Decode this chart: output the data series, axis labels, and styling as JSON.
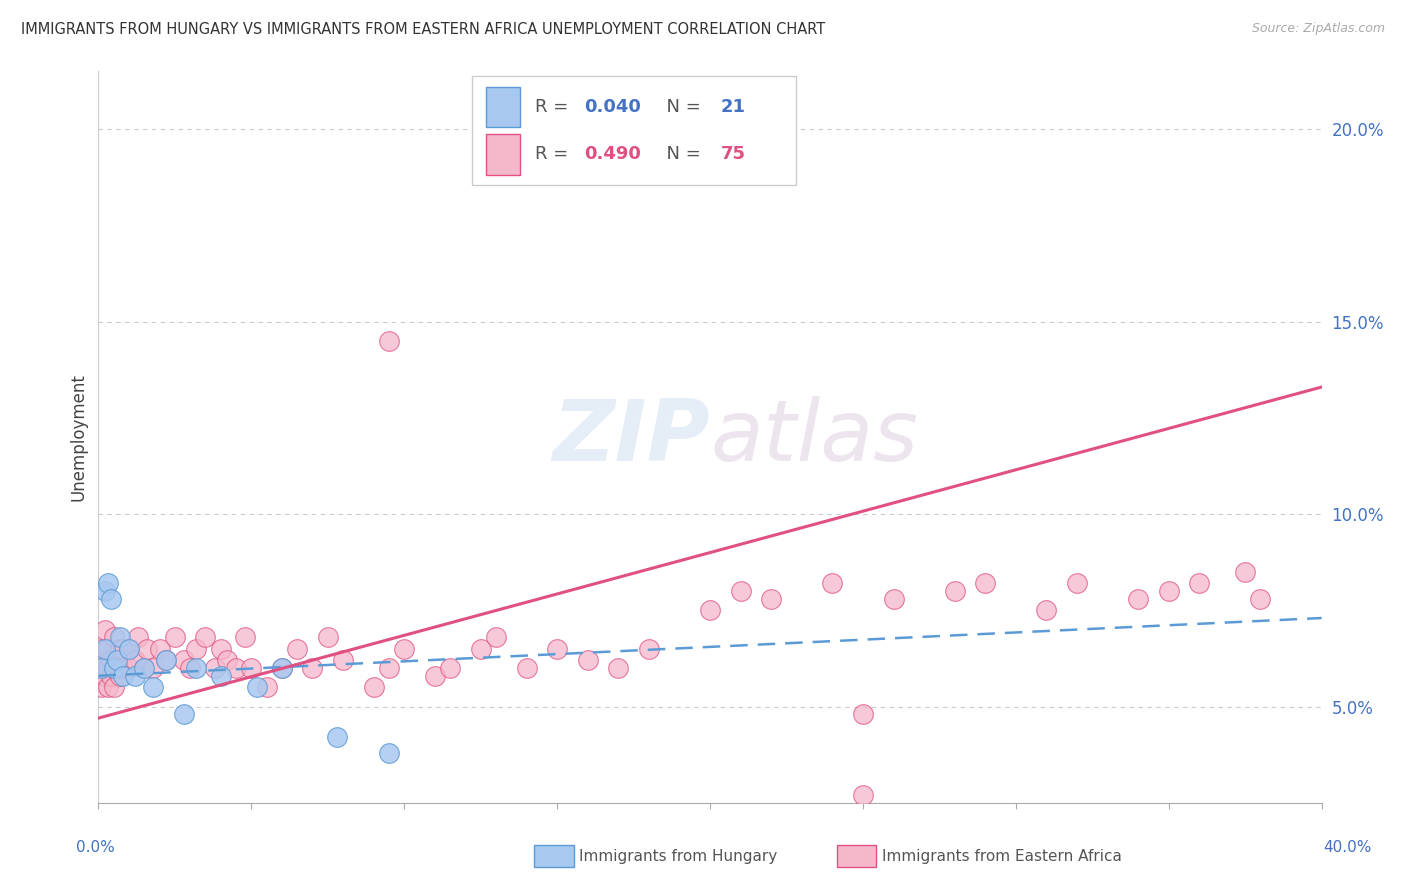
{
  "title": "IMMIGRANTS FROM HUNGARY VS IMMIGRANTS FROM EASTERN AFRICA UNEMPLOYMENT CORRELATION CHART",
  "source": "Source: ZipAtlas.com",
  "ylabel": "Unemployment",
  "yticks": [
    0.05,
    0.1,
    0.15,
    0.2
  ],
  "ytick_labels": [
    "5.0%",
    "10.0%",
    "15.0%",
    "20.0%"
  ],
  "xmin": 0.0,
  "xmax": 0.4,
  "ymin": 0.025,
  "ymax": 0.215,
  "color_hungary": "#A8C8F0",
  "color_hungary_edge": "#5B9BD5",
  "color_hungary_line": "#5B9BD5",
  "color_eastern": "#F5B8CB",
  "color_eastern_edge": "#E05080",
  "color_eastern_line": "#E05080",
  "label_hungary": "Immigrants from Hungary",
  "label_eastern": "Immigrants from Eastern Africa",
  "watermark": "ZIPatlas",
  "background_color": "#FFFFFF",
  "grid_color": "#CCCCCC",
  "hungary_r": "0.040",
  "hungary_n": "21",
  "eastern_r": "0.490",
  "eastern_n": "75",
  "hungary_line_start_y": 0.058,
  "hungary_line_end_y": 0.073,
  "eastern_line_start_y": 0.047,
  "eastern_line_end_y": 0.133
}
